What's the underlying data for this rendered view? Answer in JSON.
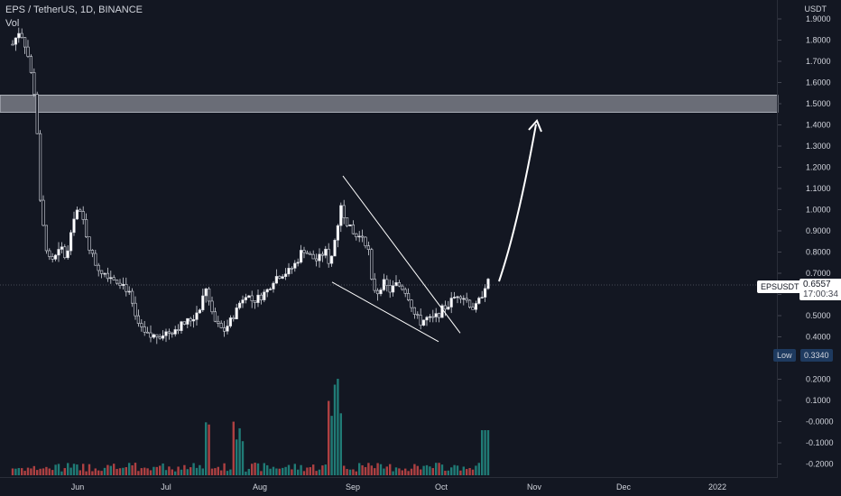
{
  "header": {
    "symbol_line": "EPS / TetherUS, 1D, BINANCE",
    "vol_label": "Vol"
  },
  "price_scale": {
    "currency": "USDT",
    "ticks": [
      "1.9000",
      "1.8000",
      "1.7000",
      "1.6000",
      "1.5000",
      "1.4000",
      "1.3000",
      "1.2000",
      "1.1000",
      "1.0000",
      "0.9000",
      "0.8000",
      "0.7000",
      "0.6000",
      "0.5000",
      "0.4000",
      "0.3000",
      "0.2000",
      "0.1000",
      "-0.0000",
      "-0.1000",
      "-0.2000"
    ]
  },
  "time_scale": {
    "labels": [
      "Jun",
      "Jul",
      "Aug",
      "Sep",
      "Oct",
      "Nov",
      "Dec",
      "2022"
    ]
  },
  "markers": {
    "symbol_tag": "EPSUSDT",
    "last_price": "0.6557",
    "countdown": "17:00:34",
    "low_label": "Low",
    "low_value": "0.3340"
  },
  "chart_data": {
    "type": "candlestick",
    "title": "EPS / TetherUS, 1D, BINANCE",
    "price_range": [
      -0.23,
      1.96
    ],
    "resistance_zone": [
      1.46,
      1.54
    ],
    "projection_target": 1.42,
    "channel_top": {
      "from": "Aug 28",
      "to": "Oct 6",
      "values": [
        1.16,
        0.42
      ]
    },
    "channel_bottom": {
      "from": "Aug 28",
      "to": "Oct 3",
      "values": [
        0.66,
        0.38
      ]
    },
    "colors": {
      "up": "#26a69a",
      "down": "#ef5350",
      "up_body": "#ffffff",
      "down_body": "#131722",
      "zone": "#b2b5be",
      "background": "#131722"
    },
    "grid": false
  }
}
